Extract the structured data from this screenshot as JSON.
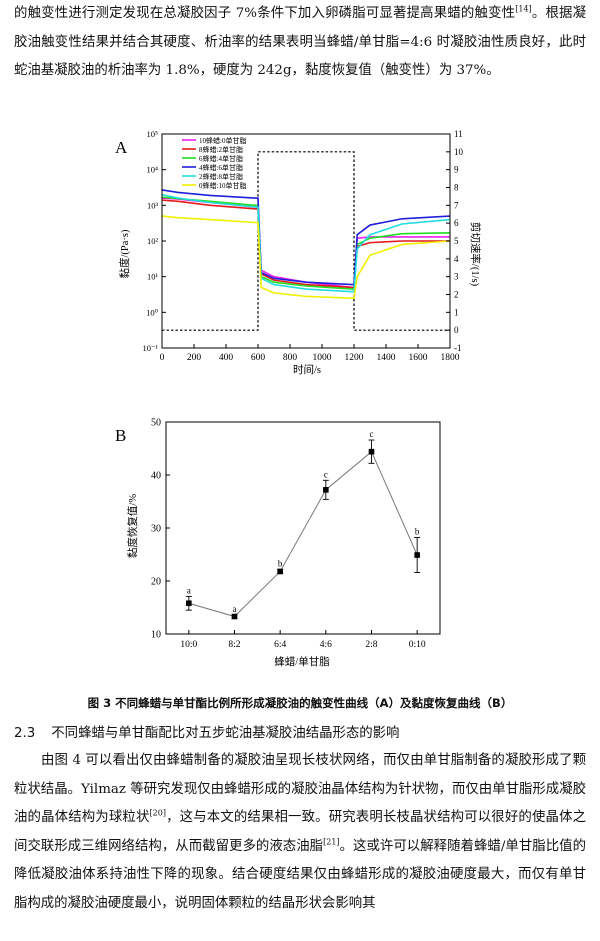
{
  "paragraph1": {
    "text": "的触变性进行测定发现在总凝胶因子 7%条件下加入卵磷脂可显著提高果蜡的触变性",
    "ref": "[14]",
    "text_after": "。根据凝胶油触变性结果并结合其硬度、析油率的结果表明当蜂蜡/单甘脂=4:6 时凝胶油性质良好，此时蛇油基凝胶油的析油率为 1.8%，硬度为 242g，黏度恢复值（触变性）为 37%。"
  },
  "chart_data": [
    {
      "panel": "A",
      "type": "line",
      "xlabel": "时间/s",
      "ylabel": "黏度/(Pa·s)",
      "y2label": "剪切速率/(1/s)",
      "xlim": [
        0,
        1800
      ],
      "xticks": [
        "0",
        "200",
        "400",
        "600",
        "800",
        "1000",
        "1200",
        "1400",
        "1600",
        "1800"
      ],
      "ylim_log": [
        0.1,
        100000
      ],
      "yticks": [
        "10⁻¹",
        "10⁰",
        "10¹",
        "10²",
        "10³",
        "10⁴",
        "10⁵"
      ],
      "y2lim": [
        -1,
        11
      ],
      "y2ticks": [
        "-1",
        "0",
        "1",
        "2",
        "3",
        "4",
        "5",
        "6",
        "7",
        "8",
        "9",
        "10",
        "11"
      ],
      "legend_position": "top-left",
      "shear_rate": {
        "x": [
          0,
          600,
          600,
          1200,
          1200,
          1800
        ],
        "y": [
          0,
          0,
          10,
          10,
          0,
          0
        ]
      },
      "series": [
        {
          "name": "10蜂蜡:0单甘脂",
          "color": "#ee1fee",
          "x": [
            0,
            100,
            300,
            580,
            600,
            620,
            700,
            900,
            1190,
            1200,
            1220,
            1300,
            1500,
            1800
          ],
          "y": [
            1600,
            1500,
            1200,
            900,
            900,
            15,
            10,
            7,
            5,
            5,
            120,
            130,
            130,
            130
          ]
        },
        {
          "name": "8蜂蜡:2单甘脂",
          "color": "#e41a1c",
          "x": [
            0,
            100,
            300,
            580,
            600,
            620,
            700,
            900,
            1190,
            1200,
            1220,
            1300,
            1500,
            1800
          ],
          "y": [
            1400,
            1300,
            1000,
            800,
            800,
            12,
            8,
            6,
            5,
            5,
            70,
            90,
            100,
            100
          ]
        },
        {
          "name": "6蜂蜡:4单甘脂",
          "color": "#22dd22",
          "x": [
            0,
            100,
            300,
            580,
            600,
            620,
            700,
            900,
            1190,
            1200,
            1220,
            1300,
            1500,
            1800
          ],
          "y": [
            1700,
            1550,
            1300,
            1000,
            1000,
            10,
            7,
            5.5,
            4.5,
            4.5,
            80,
            120,
            160,
            170
          ]
        },
        {
          "name": "4蜂蜡:6单甘脂",
          "color": "#1f1fdd",
          "x": [
            0,
            100,
            300,
            580,
            600,
            620,
            700,
            900,
            1190,
            1200,
            1220,
            1300,
            1500,
            1800
          ],
          "y": [
            2700,
            2300,
            1900,
            1600,
            1600,
            13,
            9,
            7,
            6,
            6,
            150,
            280,
            420,
            500
          ]
        },
        {
          "name": "2蜂蜡:8单甘脂",
          "color": "#22dddd",
          "x": [
            0,
            100,
            300,
            580,
            600,
            620,
            700,
            900,
            1190,
            1200,
            1220,
            1300,
            1500,
            1800
          ],
          "y": [
            2000,
            1600,
            1200,
            900,
            900,
            9,
            6,
            4.5,
            3.8,
            3.8,
            60,
            150,
            300,
            400
          ]
        },
        {
          "name": "0蜂蜡:10单甘脂",
          "color": "#f0f000",
          "x": [
            0,
            100,
            300,
            580,
            600,
            620,
            700,
            900,
            1190,
            1200,
            1220,
            1300,
            1500,
            1800
          ],
          "y": [
            500,
            450,
            400,
            330,
            330,
            5,
            3.5,
            2.8,
            2.5,
            2.5,
            10,
            40,
            80,
            100
          ]
        }
      ]
    },
    {
      "panel": "B",
      "type": "line",
      "xlabel": "蜂蜡/单甘脂",
      "ylabel": "黏度恢复值/%",
      "categories": [
        "10:0",
        "8:2",
        "6:4",
        "4:6",
        "2:8",
        "0:10"
      ],
      "values": [
        15.8,
        13.3,
        21.8,
        37.2,
        44.4,
        24.9
      ],
      "errors": [
        1.3,
        0.3,
        0.4,
        1.8,
        2.2,
        3.3
      ],
      "letters": [
        "a",
        "a",
        "b",
        "c",
        "c",
        "b"
      ],
      "ylim": [
        10,
        50
      ],
      "yticks": [
        "10",
        "20",
        "30",
        "40",
        "50"
      ]
    }
  ],
  "panel_labels": {
    "a": "A",
    "b": "B"
  },
  "caption": "图 3 不同蜂蜡与单甘酯比例所形成凝胶油的触变性曲线（A）及黏度恢复曲线（B）",
  "section": {
    "number": "2.3",
    "title": "不同蜂蜡与单甘酯配比对五步蛇油基凝胶油结晶形态的影响"
  },
  "paragraph2": {
    "part1": "由图 4 可以看出仅由蜂蜡制备的凝胶油呈现长枝状网络，而仅由单甘脂制备的凝胶形成了颗粒状结晶。Yilmaz 等研究发现仅由蜂蜡形成的凝胶油晶体结构为针状物，而仅由单甘脂形成凝胶油的晶体结构为球粒状",
    "ref1": "[20]",
    "part2": "，这与本文的结果相一致。研究表明长枝晶状结构可以很好的使晶体之间交联形成三维网络结构，从而截留更多的液态油脂",
    "ref2": "[21]",
    "part3": "。这或许可以解释随着蜂蜡/单甘脂比值的降低凝胶油体系持油性下降的现象。结合硬度结果仅由蜂蜡形成的凝胶油硬度最大，而仅有单甘脂构成的凝胶油硬度最小，说明固体颗粒的结晶形状会影响其"
  }
}
